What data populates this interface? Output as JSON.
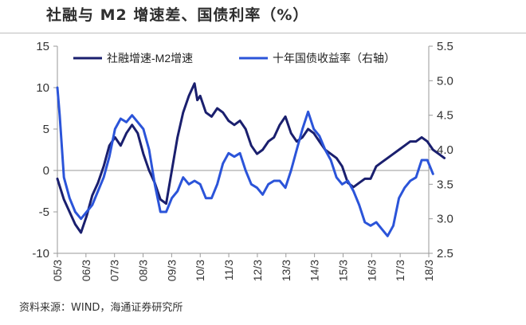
{
  "header": {
    "title": "社融与 M2 增速差、国债利率（%）"
  },
  "footer": {
    "source": "资料来源：WIND，海通证券研究所"
  },
  "chart_data": {
    "type": "line",
    "title": "社融与 M2 增速差、国债利率（%）",
    "x_categories": [
      "05/3",
      "06/3",
      "07/3",
      "08/3",
      "09/3",
      "10/3",
      "11/3",
      "12/3",
      "13/3",
      "14/3",
      "15/3",
      "16/3",
      "17/3",
      "18/3"
    ],
    "y_left": {
      "ticks": [
        15,
        10,
        5,
        0,
        -5,
        -10
      ],
      "min": -10,
      "max": 15
    },
    "y_right": {
      "ticks": [
        5.5,
        5.0,
        4.5,
        4.0,
        3.5,
        3.0,
        2.5
      ],
      "min": 2.5,
      "max": 5.5
    },
    "grid": false,
    "legend_position": "top",
    "series": [
      {
        "name": "社融增速-M2增速",
        "axis": "left",
        "color": "#1a1f6e",
        "x": [
          2005.17,
          2005.4,
          2005.6,
          2005.8,
          2006.0,
          2006.2,
          2006.4,
          2006.6,
          2006.8,
          2007.0,
          2007.2,
          2007.4,
          2007.6,
          2007.8,
          2008.0,
          2008.2,
          2008.4,
          2008.6,
          2008.8,
          2009.0,
          2009.2,
          2009.4,
          2009.6,
          2009.8,
          2010.0,
          2010.1,
          2010.2,
          2010.4,
          2010.6,
          2010.8,
          2011.0,
          2011.2,
          2011.4,
          2011.6,
          2011.8,
          2012.0,
          2012.2,
          2012.4,
          2012.6,
          2012.8,
          2013.0,
          2013.2,
          2013.4,
          2013.6,
          2013.8,
          2014.0,
          2014.2,
          2014.4,
          2014.6,
          2014.8,
          2015.0,
          2015.2,
          2015.4,
          2015.6,
          2015.8,
          2016.0,
          2016.2,
          2016.4,
          2016.6,
          2016.8,
          2017.0,
          2017.2,
          2017.4,
          2017.6,
          2017.8,
          2018.0,
          2018.2,
          2018.4,
          2018.6,
          2018.8
        ],
        "values": [
          -1.0,
          -3.5,
          -5.0,
          -6.5,
          -7.5,
          -5.5,
          -3.0,
          -1.5,
          0.5,
          3.0,
          4.0,
          3.0,
          4.5,
          5.5,
          4.5,
          2.0,
          0.0,
          -1.5,
          -3.5,
          -4.0,
          0.0,
          4.0,
          7.0,
          9.0,
          10.5,
          8.5,
          9.0,
          7.0,
          6.5,
          7.5,
          7.0,
          6.0,
          5.5,
          6.0,
          5.0,
          3.0,
          2.0,
          2.5,
          3.5,
          4.0,
          5.5,
          6.5,
          4.5,
          3.5,
          4.0,
          5.0,
          4.5,
          3.5,
          2.5,
          2.0,
          1.5,
          0.5,
          -1.5,
          -2.0,
          -1.5,
          -1.0,
          -1.0,
          0.5,
          1.0,
          1.5,
          2.0,
          2.5,
          3.0,
          3.5,
          3.5,
          4.0,
          3.5,
          2.5,
          2.0,
          1.5
        ]
      },
      {
        "name": "十年国债收益率（右轴）",
        "axis": "right",
        "color": "#2b54d9",
        "x": [
          2005.17,
          2005.25,
          2005.4,
          2005.6,
          2005.8,
          2006.0,
          2006.2,
          2006.4,
          2006.6,
          2006.8,
          2007.0,
          2007.2,
          2007.4,
          2007.6,
          2007.8,
          2008.0,
          2008.2,
          2008.4,
          2008.6,
          2008.8,
          2009.0,
          2009.2,
          2009.4,
          2009.6,
          2009.8,
          2010.0,
          2010.2,
          2010.4,
          2010.6,
          2010.8,
          2011.0,
          2011.2,
          2011.4,
          2011.6,
          2011.8,
          2012.0,
          2012.2,
          2012.4,
          2012.6,
          2012.8,
          2013.0,
          2013.2,
          2013.4,
          2013.6,
          2013.8,
          2014.0,
          2014.2,
          2014.4,
          2014.6,
          2014.8,
          2015.0,
          2015.2,
          2015.4,
          2015.6,
          2015.8,
          2016.0,
          2016.2,
          2016.4,
          2016.6,
          2016.8,
          2017.0,
          2017.2,
          2017.4,
          2017.6,
          2017.8,
          2018.0,
          2018.2,
          2018.4
        ],
        "values": [
          4.9,
          4.5,
          3.6,
          3.3,
          3.1,
          3.0,
          3.1,
          3.2,
          3.4,
          3.6,
          3.9,
          4.3,
          4.45,
          4.4,
          4.5,
          4.4,
          4.3,
          4.0,
          3.5,
          3.1,
          3.1,
          3.3,
          3.4,
          3.6,
          3.5,
          3.55,
          3.5,
          3.3,
          3.3,
          3.5,
          3.8,
          3.95,
          3.9,
          3.95,
          3.7,
          3.5,
          3.45,
          3.35,
          3.5,
          3.55,
          3.55,
          3.45,
          3.7,
          4.0,
          4.3,
          4.55,
          4.3,
          4.2,
          4.0,
          3.85,
          3.6,
          3.5,
          3.55,
          3.4,
          3.2,
          2.95,
          2.9,
          2.95,
          2.85,
          2.75,
          2.9,
          3.3,
          3.45,
          3.55,
          3.6,
          3.85,
          3.85,
          3.65
        ]
      }
    ]
  }
}
